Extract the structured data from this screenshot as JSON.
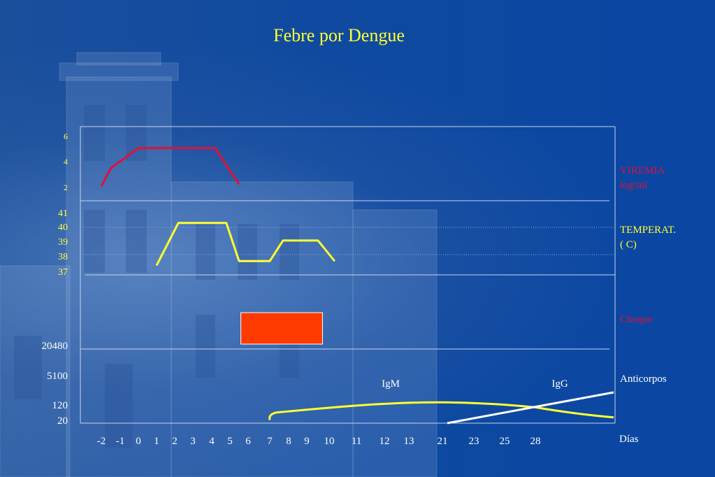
{
  "title": "Febre por Dengue",
  "colors": {
    "viremia": "#e0103a",
    "temperature": "#ffff33",
    "shock": "#ff3a00",
    "igm": "#ffff33",
    "igg": "#ffffff",
    "white_text": "#ffffff"
  },
  "chart_data": [
    {
      "type": "line",
      "panel": "viremia",
      "label_lines": [
        "VIREMIA",
        "log/ml"
      ],
      "y_ticks": [
        "6",
        "4",
        "2"
      ],
      "series": [
        {
          "x": [
            -2,
            -1.5,
            0,
            4.2,
            4.8,
            5.5
          ],
          "y": [
            1.6,
            3.5,
            5.6,
            5.6,
            3.8,
            1.8
          ]
        }
      ]
    },
    {
      "type": "line",
      "panel": "temperature",
      "label_lines": [
        "TEMPERAT.",
        "( C)"
      ],
      "y_ticks": [
        "41",
        "40",
        "39",
        "38",
        "37"
      ],
      "series": [
        {
          "x": [
            1,
            2.2,
            4.8,
            5.5,
            7,
            7.7,
            9.5,
            10.2
          ],
          "y": [
            37.4,
            40.3,
            40.3,
            37.7,
            37.7,
            39.1,
            39.1,
            37.7
          ]
        }
      ]
    },
    {
      "type": "bar",
      "panel": "shock",
      "label": "Choque",
      "x_start": 5.6,
      "x_end": 9.7
    },
    {
      "type": "line",
      "panel": "antibodies",
      "label": "Anticorpos",
      "y_ticks": [
        "20480",
        "5100",
        "120",
        "20"
      ],
      "series": [
        {
          "name": "IgM",
          "x": [
            7,
            7.4,
            12,
            21,
            28,
            36
          ],
          "y": [
            20,
            80,
            160,
            170,
            120,
            40
          ]
        },
        {
          "name": "IgG",
          "x": [
            21,
            28,
            36
          ],
          "y": [
            0,
            120,
            200
          ]
        }
      ]
    }
  ],
  "x_axis": {
    "label": "Días",
    "ticks": [
      "-2",
      "-1",
      "0",
      "1",
      "2",
      "3",
      "4",
      "5",
      "6",
      "7",
      "8",
      "9",
      "10",
      "11",
      "12",
      "13",
      "21",
      "23",
      "25",
      "28"
    ]
  }
}
